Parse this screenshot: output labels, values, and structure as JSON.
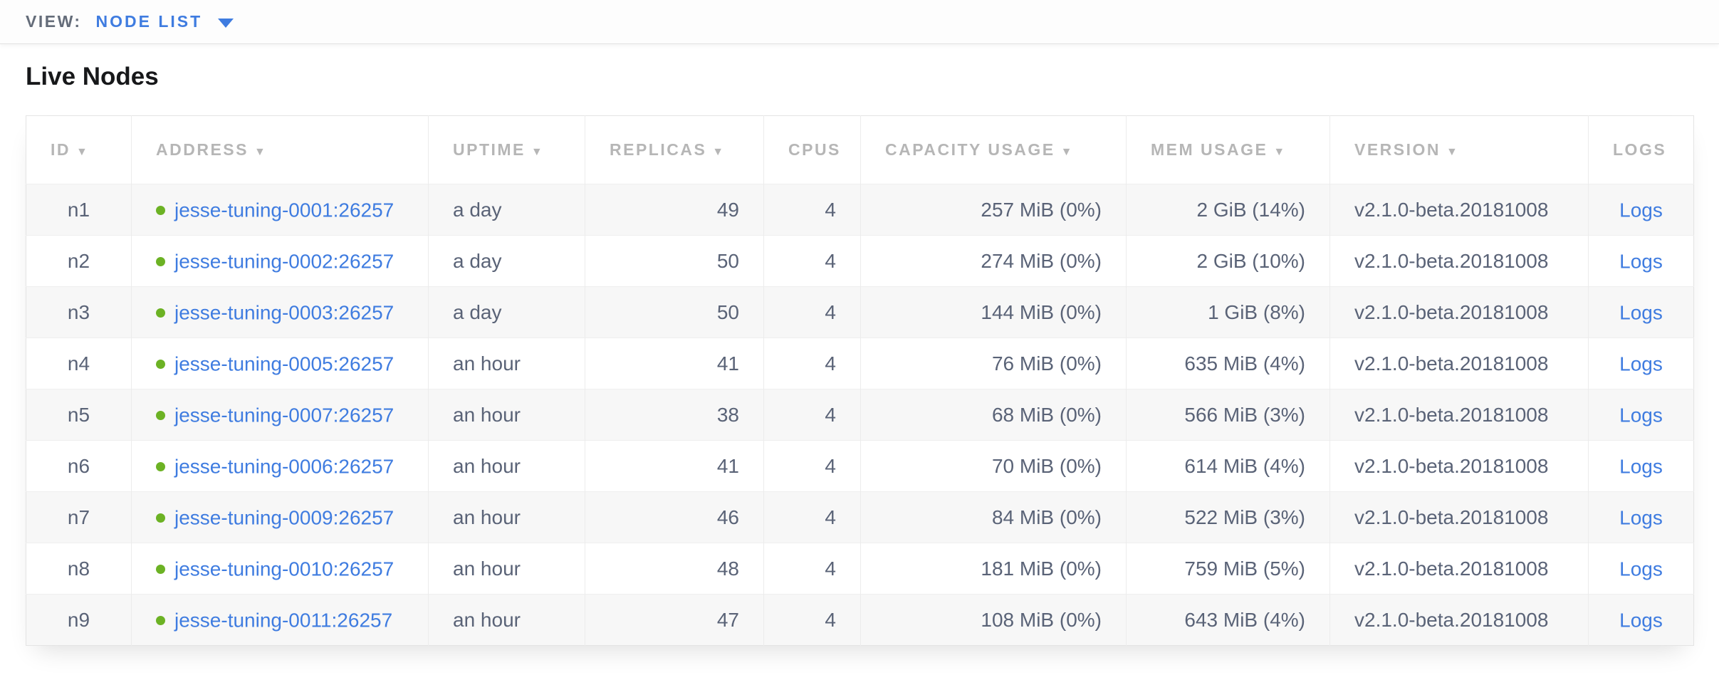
{
  "toolbar": {
    "view_label": "VIEW:",
    "view_value": "NODE LIST"
  },
  "page": {
    "title": "Live Nodes"
  },
  "colors": {
    "accent_blue": "#3f7ce0",
    "link_blue": "#3f7ce0",
    "live_status_green": "#6cb224",
    "header_text_gray": "#b6b6b6",
    "cell_text": "#5a6377",
    "row_alt_bg": "#f7f7f7"
  },
  "table": {
    "sort_icon": "▼",
    "logs_link_label": "Logs",
    "columns": [
      {
        "key": "id",
        "label": "ID",
        "sortable": true,
        "align": "center"
      },
      {
        "key": "address",
        "label": "ADDRESS",
        "sortable": true,
        "align": "left"
      },
      {
        "key": "uptime",
        "label": "UPTIME",
        "sortable": true,
        "align": "left"
      },
      {
        "key": "replicas",
        "label": "REPLICAS",
        "sortable": true,
        "align": "right"
      },
      {
        "key": "cpus",
        "label": "CPUS",
        "sortable": false,
        "align": "right"
      },
      {
        "key": "capacity_usage",
        "label": "CAPACITY USAGE",
        "sortable": true,
        "align": "right"
      },
      {
        "key": "mem_usage",
        "label": "MEM USAGE",
        "sortable": true,
        "align": "right"
      },
      {
        "key": "version",
        "label": "VERSION",
        "sortable": true,
        "align": "left"
      },
      {
        "key": "logs",
        "label": "LOGS",
        "sortable": false,
        "align": "center"
      }
    ],
    "rows": [
      {
        "id": "n1",
        "status": "live",
        "address": "jesse-tuning-0001:26257",
        "uptime": "a day",
        "replicas": "49",
        "cpus": "4",
        "capacity_usage": "257 MiB (0%)",
        "mem_usage": "2 GiB (14%)",
        "version": "v2.1.0-beta.20181008"
      },
      {
        "id": "n2",
        "status": "live",
        "address": "jesse-tuning-0002:26257",
        "uptime": "a day",
        "replicas": "50",
        "cpus": "4",
        "capacity_usage": "274 MiB (0%)",
        "mem_usage": "2 GiB (10%)",
        "version": "v2.1.0-beta.20181008"
      },
      {
        "id": "n3",
        "status": "live",
        "address": "jesse-tuning-0003:26257",
        "uptime": "a day",
        "replicas": "50",
        "cpus": "4",
        "capacity_usage": "144 MiB (0%)",
        "mem_usage": "1 GiB (8%)",
        "version": "v2.1.0-beta.20181008"
      },
      {
        "id": "n4",
        "status": "live",
        "address": "jesse-tuning-0005:26257",
        "uptime": "an hour",
        "replicas": "41",
        "cpus": "4",
        "capacity_usage": "76 MiB (0%)",
        "mem_usage": "635 MiB (4%)",
        "version": "v2.1.0-beta.20181008"
      },
      {
        "id": "n5",
        "status": "live",
        "address": "jesse-tuning-0007:26257",
        "uptime": "an hour",
        "replicas": "38",
        "cpus": "4",
        "capacity_usage": "68 MiB (0%)",
        "mem_usage": "566 MiB (3%)",
        "version": "v2.1.0-beta.20181008"
      },
      {
        "id": "n6",
        "status": "live",
        "address": "jesse-tuning-0006:26257",
        "uptime": "an hour",
        "replicas": "41",
        "cpus": "4",
        "capacity_usage": "70 MiB (0%)",
        "mem_usage": "614 MiB (4%)",
        "version": "v2.1.0-beta.20181008"
      },
      {
        "id": "n7",
        "status": "live",
        "address": "jesse-tuning-0009:26257",
        "uptime": "an hour",
        "replicas": "46",
        "cpus": "4",
        "capacity_usage": "84 MiB (0%)",
        "mem_usage": "522 MiB (3%)",
        "version": "v2.1.0-beta.20181008"
      },
      {
        "id": "n8",
        "status": "live",
        "address": "jesse-tuning-0010:26257",
        "uptime": "an hour",
        "replicas": "48",
        "cpus": "4",
        "capacity_usage": "181 MiB (0%)",
        "mem_usage": "759 MiB (5%)",
        "version": "v2.1.0-beta.20181008"
      },
      {
        "id": "n9",
        "status": "live",
        "address": "jesse-tuning-0011:26257",
        "uptime": "an hour",
        "replicas": "47",
        "cpus": "4",
        "capacity_usage": "108 MiB (0%)",
        "mem_usage": "643 MiB (4%)",
        "version": "v2.1.0-beta.20181008"
      }
    ]
  }
}
